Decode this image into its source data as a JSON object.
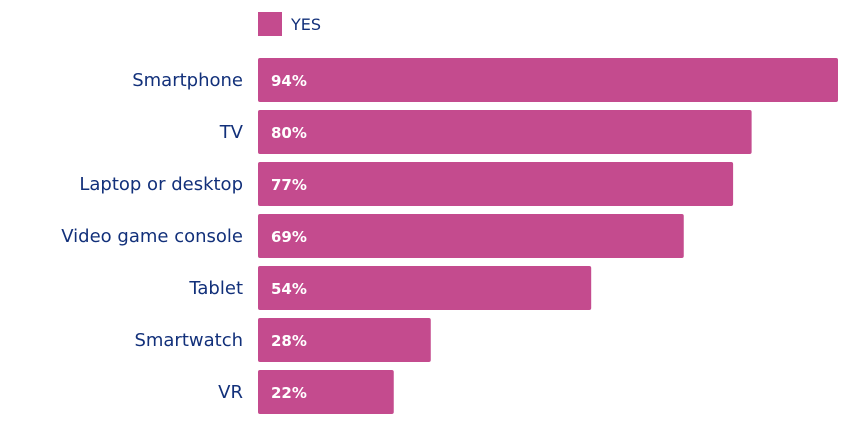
{
  "chart_data": {
    "type": "bar",
    "orientation": "horizontal",
    "categories": [
      "Smartphone",
      "TV",
      "Laptop or desktop",
      "Video game console",
      "Tablet",
      "Smartwatch",
      "VR"
    ],
    "series": [
      {
        "name": "YES",
        "values": [
          94,
          80,
          77,
          69,
          54,
          28,
          22
        ],
        "labels": [
          "94%",
          "80%",
          "77%",
          "69%",
          "54%",
          "28%",
          "22%"
        ],
        "color": "#c44b8e"
      }
    ],
    "xlim": [
      0,
      94
    ],
    "grid": false,
    "legend": "top"
  },
  "colors": {
    "bar": "#c44b8e",
    "category_text": "#12307a",
    "value_text": "#ffffff"
  }
}
